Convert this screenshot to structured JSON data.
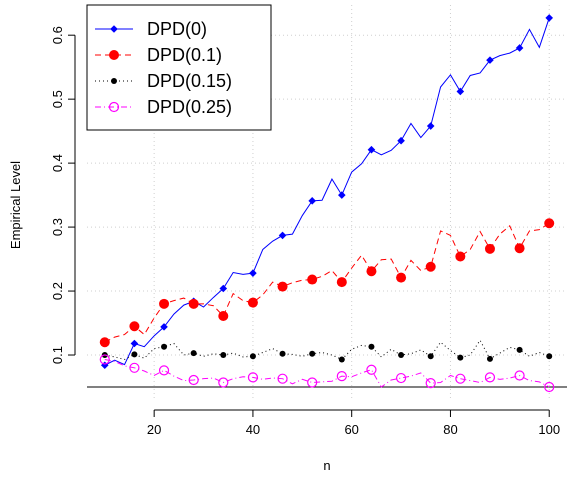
{
  "chart_data": {
    "type": "line",
    "xlabel": "n",
    "ylabel": "Empirical Level",
    "xlim": [
      10,
      100
    ],
    "ylim": [
      0.05,
      0.63
    ],
    "xticks": [
      20,
      40,
      60,
      80,
      100
    ],
    "yticks": [
      0.1,
      0.2,
      0.3,
      0.4,
      0.5,
      0.6
    ],
    "grid": true,
    "legend_position": "top-left",
    "reference_line": 0.05,
    "x": [
      10,
      12,
      14,
      16,
      18,
      20,
      22,
      24,
      26,
      28,
      30,
      32,
      34,
      36,
      38,
      40,
      42,
      44,
      46,
      48,
      50,
      52,
      54,
      56,
      58,
      60,
      62,
      64,
      66,
      68,
      70,
      72,
      74,
      76,
      78,
      80,
      82,
      84,
      86,
      88,
      90,
      92,
      94,
      96,
      98,
      100
    ],
    "series": [
      {
        "name": "DPD(0)",
        "color": "#0000ff",
        "marker": "diamond",
        "line": "solid",
        "values": [
          0.084,
          0.092,
          0.085,
          0.118,
          0.113,
          0.13,
          0.144,
          0.164,
          0.178,
          0.184,
          0.175,
          0.19,
          0.204,
          0.229,
          0.226,
          0.228,
          0.265,
          0.278,
          0.287,
          0.289,
          0.318,
          0.341,
          0.342,
          0.375,
          0.35,
          0.386,
          0.399,
          0.421,
          0.413,
          0.42,
          0.435,
          0.462,
          0.44,
          0.458,
          0.519,
          0.538,
          0.512,
          0.537,
          0.541,
          0.561,
          0.568,
          0.572,
          0.58,
          0.609,
          0.581,
          0.627
        ]
      },
      {
        "name": "DPD(0.1)",
        "color": "#ff0000",
        "marker": "filled-circle",
        "line": "dashed",
        "values": [
          0.12,
          0.128,
          0.132,
          0.145,
          0.132,
          0.158,
          0.18,
          0.185,
          0.189,
          0.18,
          0.18,
          0.177,
          0.161,
          0.196,
          0.185,
          0.182,
          0.194,
          0.214,
          0.207,
          0.213,
          0.217,
          0.218,
          0.223,
          0.232,
          0.214,
          0.236,
          0.256,
          0.231,
          0.249,
          0.25,
          0.221,
          0.248,
          0.232,
          0.238,
          0.294,
          0.287,
          0.254,
          0.265,
          0.293,
          0.266,
          0.289,
          0.302,
          0.267,
          0.294,
          0.296,
          0.306
        ]
      },
      {
        "name": "DPD(0.15)",
        "color": "#000000",
        "marker": "small-filled-circle",
        "line": "dotted",
        "values": [
          0.1,
          0.097,
          0.093,
          0.101,
          0.095,
          0.11,
          0.113,
          0.118,
          0.1,
          0.103,
          0.098,
          0.102,
          0.1,
          0.103,
          0.097,
          0.098,
          0.104,
          0.11,
          0.102,
          0.101,
          0.098,
          0.102,
          0.104,
          0.1,
          0.093,
          0.109,
          0.115,
          0.113,
          0.097,
          0.109,
          0.1,
          0.102,
          0.108,
          0.098,
          0.12,
          0.107,
          0.096,
          0.1,
          0.123,
          0.094,
          0.103,
          0.112,
          0.108,
          0.098,
          0.104,
          0.098
        ]
      },
      {
        "name": "DPD(0.25)",
        "color": "#ff00ff",
        "marker": "open-circle",
        "line": "dashdot",
        "values": [
          0.093,
          0.09,
          0.083,
          0.08,
          0.075,
          0.068,
          0.076,
          0.067,
          0.06,
          0.061,
          0.063,
          0.064,
          0.057,
          0.063,
          0.066,
          0.065,
          0.062,
          0.064,
          0.063,
          0.055,
          0.062,
          0.057,
          0.058,
          0.059,
          0.067,
          0.066,
          0.072,
          0.077,
          0.05,
          0.061,
          0.064,
          0.067,
          0.072,
          0.056,
          0.057,
          0.068,
          0.063,
          0.06,
          0.057,
          0.065,
          0.062,
          0.064,
          0.068,
          0.06,
          0.058,
          0.05
        ]
      }
    ]
  }
}
